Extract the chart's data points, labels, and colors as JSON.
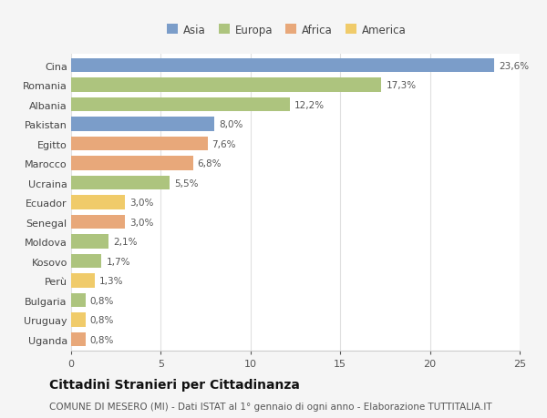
{
  "categories": [
    "Cina",
    "Romania",
    "Albania",
    "Pakistan",
    "Egitto",
    "Marocco",
    "Ucraina",
    "Ecuador",
    "Senegal",
    "Moldova",
    "Kosovo",
    "Perù",
    "Bulgaria",
    "Uruguay",
    "Uganda"
  ],
  "values": [
    23.6,
    17.3,
    12.2,
    8.0,
    7.6,
    6.8,
    5.5,
    3.0,
    3.0,
    2.1,
    1.7,
    1.3,
    0.8,
    0.8,
    0.8
  ],
  "labels": [
    "23,6%",
    "17,3%",
    "12,2%",
    "8,0%",
    "7,6%",
    "6,8%",
    "5,5%",
    "3,0%",
    "3,0%",
    "2,1%",
    "1,7%",
    "1,3%",
    "0,8%",
    "0,8%",
    "0,8%"
  ],
  "colors": [
    "#7b9dc9",
    "#adc47e",
    "#adc47e",
    "#7b9dc9",
    "#e8a87a",
    "#e8a87a",
    "#adc47e",
    "#f0cb6a",
    "#e8a87a",
    "#adc47e",
    "#adc47e",
    "#f0cb6a",
    "#adc47e",
    "#f0cb6a",
    "#e8a87a"
  ],
  "legend_labels": [
    "Asia",
    "Europa",
    "Africa",
    "America"
  ],
  "legend_colors": [
    "#7b9dc9",
    "#adc47e",
    "#e8a87a",
    "#f0cb6a"
  ],
  "title": "Cittadini Stranieri per Cittadinanza",
  "subtitle": "COMUNE DI MESERO (MI) - Dati ISTAT al 1° gennaio di ogni anno - Elaborazione TUTTITALIA.IT",
  "xlim": [
    0,
    25
  ],
  "xticks": [
    0,
    5,
    10,
    15,
    20,
    25
  ],
  "background_color": "#f5f5f5",
  "bar_background": "#ffffff",
  "grid_color": "#e0e0e0",
  "label_fontsize": 7.5,
  "ytick_fontsize": 8,
  "xtick_fontsize": 8,
  "title_fontsize": 10,
  "subtitle_fontsize": 7.5,
  "legend_fontsize": 8.5,
  "bar_height": 0.72
}
